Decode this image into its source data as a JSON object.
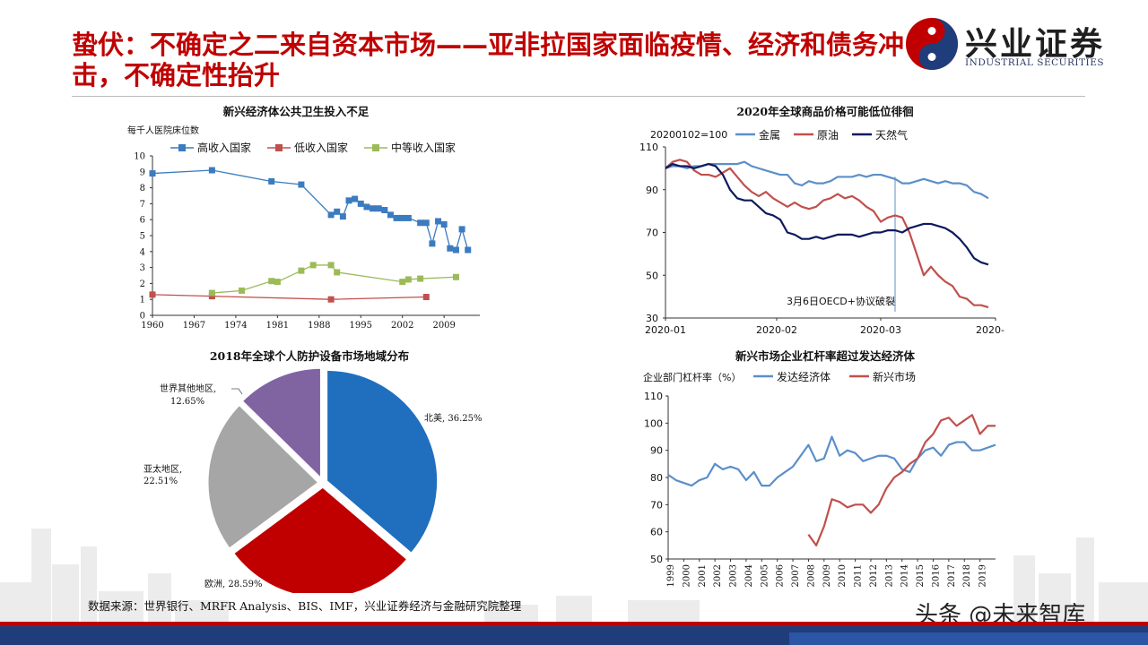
{
  "slide": {
    "title": "蛰伏：不确定之二来自资本市场——亚非拉国家面临疫情、经济和债务冲击，不确定性抬升",
    "logo_cn": "兴业证券",
    "logo_en": "INDUSTRIAL SECURITIES",
    "source": "数据来源：世界银行、MRFR Analysis、BIS、IMF，兴业证券经济与金融研究院整理",
    "watermark": "头条 @未来智库",
    "colors": {
      "title": "#c00000",
      "high": "#3b7bbf",
      "low": "#c0504d",
      "mid": "#9bbb59",
      "metal": "#5b8fc9",
      "oil": "#c0504d",
      "gas": "#0d1a5c"
    }
  },
  "chart_data": [
    {
      "id": "beds",
      "type": "line",
      "title": "新兴经济体公共卫生投入不足",
      "ylabel": "每千人医院床位数",
      "ylim": [
        0,
        10
      ],
      "yticks": [
        "0",
        "1",
        "2",
        "3",
        "4",
        "5",
        "6",
        "7",
        "8",
        "9",
        "10"
      ],
      "xlim": [
        1960,
        2015
      ],
      "xticks": [
        "1960",
        "1967",
        "1974",
        "1981",
        "1988",
        "1995",
        "2002",
        "2009"
      ],
      "series": [
        {
          "name": "高收入国家",
          "x": [
            1960,
            1970,
            1980,
            1985,
            1990,
            1991,
            1992,
            1993,
            1994,
            1995,
            1996,
            1997,
            1998,
            1999,
            2000,
            2001,
            2002,
            2003,
            2005,
            2006,
            2007,
            2008,
            2009,
            2010,
            2011,
            2012,
            2013
          ],
          "y": [
            8.9,
            9.1,
            8.4,
            8.2,
            6.3,
            6.5,
            6.2,
            7.2,
            7.3,
            7.0,
            6.8,
            6.7,
            6.7,
            6.6,
            6.3,
            6.1,
            6.1,
            6.1,
            5.8,
            5.8,
            4.5,
            5.9,
            5.7,
            4.2,
            4.1,
            5.4,
            4.1
          ]
        },
        {
          "name": "低收入国家",
          "x": [
            1960,
            1970,
            1990,
            2006
          ],
          "y": [
            1.3,
            1.2,
            1.0,
            1.15
          ]
        },
        {
          "name": "中等收入国家",
          "x": [
            1970,
            1975,
            1980,
            1981,
            1985,
            1987,
            1990,
            1991,
            2002,
            2003,
            2005,
            2011
          ],
          "y": [
            1.4,
            1.55,
            2.15,
            2.1,
            2.8,
            3.15,
            3.15,
            2.7,
            2.1,
            2.25,
            2.3,
            2.4
          ]
        }
      ]
    },
    {
      "id": "commodities",
      "type": "line",
      "title": "2020年全球商品价格可能低位徘徊",
      "ylabel": "20200102=100",
      "ylim": [
        30,
        110
      ],
      "yticks": [
        "30",
        "50",
        "70",
        "90",
        "110"
      ],
      "xticks": [
        "2020-01",
        "2020-02",
        "2020-03",
        "2020-"
      ],
      "annotation": "3月6日OECD+协议破裂",
      "series": [
        {
          "name": "金属",
          "x": [
            0,
            2,
            4,
            6,
            8,
            10,
            12,
            14,
            16,
            18,
            20,
            22,
            24,
            26,
            28,
            30,
            32,
            34,
            36,
            38,
            40,
            42,
            44,
            46,
            48,
            50,
            52,
            54,
            56,
            58,
            60,
            62,
            64,
            66,
            68,
            70,
            72,
            74,
            76,
            78,
            80,
            82,
            84,
            86,
            88,
            90
          ],
          "y": [
            100,
            101,
            101,
            100,
            101,
            101,
            102,
            102,
            102,
            102,
            102,
            103,
            101,
            100,
            99,
            98,
            97,
            97,
            93,
            92,
            94,
            93,
            93,
            94,
            96,
            96,
            96,
            97,
            96,
            97,
            97,
            96,
            95,
            93,
            93,
            94,
            95,
            94,
            93,
            94,
            93,
            93,
            92,
            89,
            88,
            86
          ]
        },
        {
          "name": "原油",
          "x": [
            0,
            2,
            4,
            6,
            8,
            10,
            12,
            14,
            16,
            18,
            20,
            22,
            24,
            26,
            28,
            30,
            32,
            34,
            36,
            38,
            40,
            42,
            44,
            46,
            48,
            50,
            52,
            54,
            56,
            58,
            60,
            62,
            64,
            66,
            68,
            70,
            72,
            74,
            76,
            78,
            80,
            82,
            84,
            86,
            88,
            90
          ],
          "y": [
            100,
            103,
            104,
            103,
            99,
            97,
            97,
            96,
            98,
            100,
            96,
            92,
            89,
            87,
            89,
            86,
            84,
            82,
            84,
            82,
            81,
            82,
            85,
            86,
            88,
            86,
            87,
            85,
            82,
            80,
            75,
            77,
            78,
            77,
            70,
            60,
            50,
            54,
            50,
            47,
            45,
            40,
            39,
            36,
            36,
            35
          ]
        },
        {
          "name": "天然气",
          "x": [
            0,
            2,
            4,
            6,
            8,
            10,
            12,
            14,
            16,
            18,
            20,
            22,
            24,
            26,
            28,
            30,
            32,
            34,
            36,
            38,
            40,
            42,
            44,
            46,
            48,
            50,
            52,
            54,
            56,
            58,
            60,
            62,
            64,
            66,
            68,
            70,
            72,
            74,
            76,
            78,
            80,
            82,
            84,
            86,
            88,
            90
          ],
          "y": [
            100,
            102,
            101,
            101,
            100,
            101,
            102,
            101,
            97,
            90,
            86,
            85,
            85,
            82,
            79,
            78,
            76,
            70,
            69,
            67,
            67,
            68,
            67,
            68,
            69,
            69,
            69,
            68,
            69,
            70,
            70,
            71,
            71,
            70,
            72,
            73,
            74,
            74,
            73,
            72,
            70,
            67,
            63,
            58,
            56,
            55
          ]
        }
      ]
    },
    {
      "id": "ppe",
      "type": "pie",
      "title": "2018年全球个人防护设备市场地域分布",
      "slices": [
        {
          "label": "北美",
          "value": 36.25,
          "text": "北美, 36.25%",
          "color": "#1f6fbe"
        },
        {
          "label": "欧洲",
          "value": 28.59,
          "text": "欧洲, 28.59%",
          "color": "#c00000"
        },
        {
          "label": "亚太地区",
          "value": 22.51,
          "text_l1": "亚太地区,",
          "text_l2": "22.51%",
          "color": "#a6a6a6"
        },
        {
          "label": "世界其他地区",
          "value": 12.65,
          "text_l1": "世界其他地区,",
          "text_l2": "12.65%",
          "color": "#8064a2"
        }
      ]
    },
    {
      "id": "leverage",
      "type": "line",
      "title": "新兴市场企业杠杆率超过发达经济体",
      "ylabel": "企业部门杠杆率（%）",
      "ylim": [
        50,
        110
      ],
      "yticks": [
        "50",
        "60",
        "70",
        "80",
        "90",
        "100",
        "110"
      ],
      "xticks": [
        "1999",
        "2000",
        "2001",
        "2002",
        "2003",
        "2004",
        "2005",
        "2006",
        "2007",
        "2008",
        "2009",
        "2010",
        "2011",
        "2012",
        "2013",
        "2014",
        "2015",
        "2016",
        "2017",
        "2018",
        "2019"
      ],
      "series": [
        {
          "name": "发达经济体",
          "x": [
            1999,
            1999.5,
            2000,
            2000.5,
            2001,
            2001.5,
            2002,
            2002.5,
            2003,
            2003.5,
            2004,
            2004.5,
            2005,
            2005.5,
            2006,
            2006.5,
            2007,
            2007.5,
            2008,
            2008.5,
            2009,
            2009.5,
            2010,
            2010.5,
            2011,
            2011.5,
            2012,
            2012.5,
            2013,
            2013.5,
            2014,
            2014.5,
            2015,
            2015.5,
            2016,
            2016.5,
            2017,
            2017.5,
            2018,
            2018.5,
            2019,
            2019.5,
            2020
          ],
          "y": [
            81,
            79,
            78,
            77,
            79,
            80,
            85,
            83,
            84,
            83,
            79,
            82,
            77,
            77,
            80,
            82,
            84,
            88,
            92,
            86,
            87,
            95,
            88,
            90,
            89,
            86,
            87,
            88,
            88,
            87,
            83,
            82,
            87,
            90,
            91,
            88,
            92,
            93,
            93,
            90,
            90,
            91,
            92
          ]
        },
        {
          "name": "新兴市场",
          "x": [
            2008,
            2008.5,
            2009,
            2009.5,
            2010,
            2010.5,
            2011,
            2011.5,
            2012,
            2012.5,
            2013,
            2013.5,
            2014,
            2014.5,
            2015,
            2015.5,
            2016,
            2016.5,
            2017,
            2017.5,
            2018,
            2018.5,
            2019,
            2019.5,
            2020
          ],
          "y": [
            59,
            55,
            62,
            72,
            71,
            69,
            70,
            70,
            67,
            70,
            76,
            80,
            82,
            85,
            87,
            93,
            96,
            101,
            102,
            99,
            101,
            103,
            96,
            99,
            99
          ]
        }
      ]
    }
  ]
}
